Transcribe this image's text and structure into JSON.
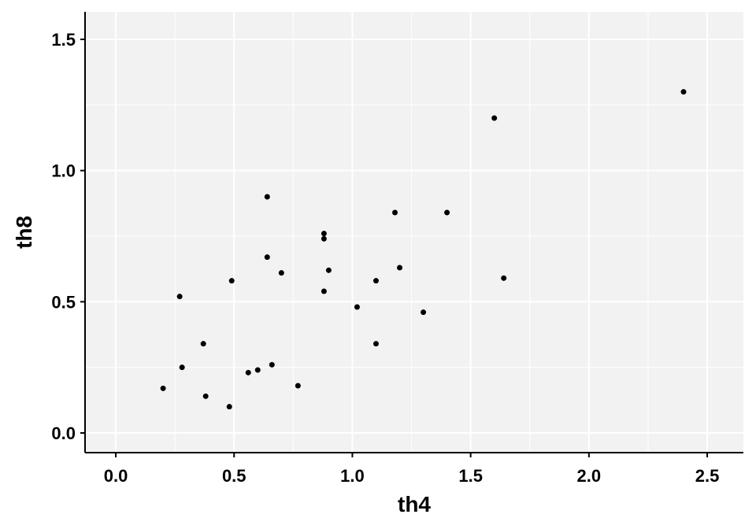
{
  "chart_data": {
    "type": "scatter",
    "x_label": "th4",
    "y_label": "th8",
    "x": [
      0.2,
      0.27,
      0.28,
      0.37,
      0.38,
      0.48,
      0.49,
      0.56,
      0.6,
      0.64,
      0.64,
      0.66,
      0.7,
      0.77,
      0.88,
      0.88,
      0.88,
      0.9,
      1.02,
      1.1,
      1.1,
      1.18,
      1.2,
      1.3,
      1.4,
      1.6,
      1.64,
      2.4
    ],
    "values": [
      0.17,
      0.52,
      0.25,
      0.34,
      0.14,
      0.1,
      0.58,
      0.23,
      0.24,
      0.9,
      0.67,
      0.26,
      0.61,
      0.18,
      0.76,
      0.74,
      0.54,
      0.62,
      0.48,
      0.58,
      0.34,
      0.84,
      0.63,
      0.46,
      0.84,
      1.2,
      0.59,
      1.3
    ],
    "color": "#000000",
    "xlim": [
      -0.13,
      2.653
    ],
    "ylim": [
      -0.075,
      1.605
    ],
    "xticks": [
      {
        "value": 0,
        "label": "0.0"
      },
      0.5,
      {
        "value": 1,
        "label": "1.0"
      },
      1.5,
      {
        "value": 2,
        "label": "2.0"
      },
      2.5
    ],
    "yticks": [
      {
        "value": 0,
        "label": "0.0"
      },
      0.5,
      {
        "value": 1,
        "label": "1.0"
      },
      1.5
    ],
    "grid": true
  }
}
